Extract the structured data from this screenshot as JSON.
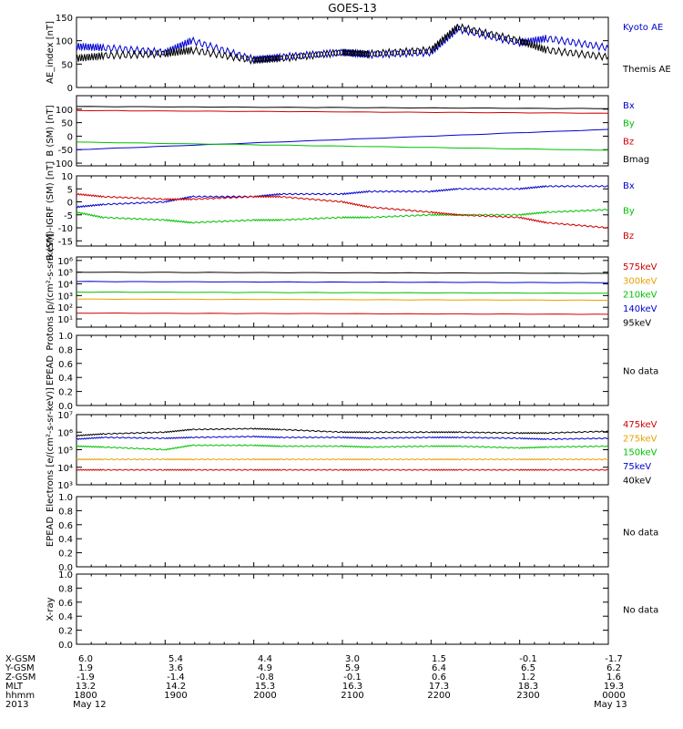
{
  "title": "GOES-13",
  "no_data_label": "No data",
  "colors": {
    "black": "#000000",
    "blue": "#0000d0",
    "red": "#d00000",
    "green": "#00c000",
    "orange": "#e8a000"
  },
  "footer": {
    "rows": [
      {
        "label": "X-GSM",
        "values": [
          "6.0",
          "5.4",
          "4.4",
          "3.0",
          "1.5",
          "-0.1",
          "-1.7"
        ]
      },
      {
        "label": "Y-GSM",
        "values": [
          "1.9",
          "3.6",
          "4.9",
          "5.9",
          "6.4",
          "6.5",
          "6.2"
        ]
      },
      {
        "label": "Z-GSM",
        "values": [
          "-1.9",
          "-1.4",
          "-0.8",
          "-0.1",
          "0.6",
          "1.2",
          "1.6"
        ]
      },
      {
        "label": "MLT",
        "values": [
          "13.2",
          "14.2",
          "15.3",
          "16.3",
          "17.3",
          "18.3",
          "19.3"
        ]
      },
      {
        "label": "hhmm",
        "values": [
          "1800",
          "1900",
          "2000",
          "2100",
          "2200",
          "2300",
          "0000"
        ]
      }
    ],
    "year": "2013",
    "date_start": "May 12",
    "date_end": "May 13"
  },
  "chart_data": [
    {
      "id": "ae",
      "type": "line",
      "ylabel": "AE_index [nT]",
      "ylim": [
        0,
        150
      ],
      "scale": "linear",
      "ticks": [
        "0",
        "50",
        "100",
        "150"
      ],
      "x": [
        1800,
        1830,
        1900,
        1930,
        2000,
        2030,
        2100,
        2130,
        2200,
        2230,
        2300,
        2330,
        2400
      ],
      "series": [
        {
          "name": "Kyoto AE",
          "color": "blue",
          "values": [
            88,
            85,
            75,
            100,
            60,
            65,
            75,
            70,
            75,
            125,
            95,
            105,
            85
          ]
        },
        {
          "name": "Themis AE",
          "color": "black",
          "values": [
            62,
            68,
            72,
            80,
            58,
            62,
            75,
            72,
            80,
            130,
            100,
            80,
            65
          ]
        }
      ]
    },
    {
      "id": "b",
      "type": "line",
      "ylabel": "B (SM) [nT]",
      "ylim": [
        -110,
        150
      ],
      "scale": "linear",
      "ticks": [
        "-100",
        "-50",
        "0",
        "50",
        "100"
      ],
      "x": [
        1800,
        2400
      ],
      "series": [
        {
          "name": "Bx",
          "color": "blue",
          "values": [
            -50,
            25
          ]
        },
        {
          "name": "By",
          "color": "green",
          "values": [
            -22,
            -52
          ]
        },
        {
          "name": "Bz",
          "color": "red",
          "values": [
            95,
            85
          ]
        },
        {
          "name": "Bmag",
          "color": "black",
          "values": [
            110,
            102
          ]
        }
      ]
    },
    {
      "id": "bigrf",
      "type": "line",
      "ylabel": "B (SM)-IGRF (SM) [nT]",
      "ylim": [
        -17,
        10
      ],
      "scale": "linear",
      "ticks": [
        "-15",
        "-10",
        "-5",
        "0",
        "5",
        "10"
      ],
      "x": [
        1800,
        1830,
        1900,
        1930,
        2000,
        2030,
        2100,
        2130,
        2200,
        2230,
        2300,
        2330,
        2400
      ],
      "series": [
        {
          "name": "Bx",
          "color": "blue",
          "values": [
            -2,
            -1,
            0,
            2,
            2,
            3,
            3,
            4,
            4,
            5,
            5,
            6,
            6
          ]
        },
        {
          "name": "By",
          "color": "green",
          "values": [
            -4,
            -6,
            -7,
            -8,
            -7,
            -7,
            -6,
            -6,
            -5,
            -5,
            -5,
            -4,
            -3
          ]
        },
        {
          "name": "Bz",
          "color": "red",
          "values": [
            3,
            2,
            1,
            1,
            2,
            2,
            0,
            -2,
            -4,
            -5,
            -6,
            -8,
            -10
          ]
        }
      ]
    },
    {
      "id": "protons",
      "type": "line",
      "ylabel": "Protons [p/(cm²-s-sr-keV)]",
      "ylim": [
        0.3,
        6.3
      ],
      "scale": "log",
      "ticks": [
        "10¹",
        "10²",
        "10³",
        "10⁴",
        "10⁵",
        "10⁶"
      ],
      "x": [
        1800,
        2400
      ],
      "series": [
        {
          "name": "575keV",
          "color": "red",
          "values": [
            1.5,
            1.4
          ]
        },
        {
          "name": "300keV",
          "color": "orange",
          "values": [
            2.7,
            2.6
          ]
        },
        {
          "name": "210keV",
          "color": "green",
          "values": [
            3.3,
            3.2
          ]
        },
        {
          "name": "140keV",
          "color": "blue",
          "values": [
            4.2,
            4.1
          ]
        },
        {
          "name": "95keV",
          "color": "black",
          "values": [
            5.0,
            4.9
          ]
        }
      ]
    },
    {
      "id": "epead1",
      "type": "empty",
      "ylabel": "EPEAD",
      "ylim": [
        0,
        1
      ],
      "scale": "linear",
      "ticks": [
        "0.0",
        "0.2",
        "0.4",
        "0.6",
        "0.8",
        "1.0"
      ],
      "series": []
    },
    {
      "id": "electrons",
      "type": "line",
      "ylabel": "Electrons [e/(cm²-s-sr-keV)]",
      "ylim": [
        3,
        7
      ],
      "scale": "log",
      "ticks": [
        "10³",
        "10⁴",
        "10⁵",
        "10⁶",
        "10⁷"
      ],
      "x": [
        1800,
        1830,
        1900,
        1930,
        2000,
        2030,
        2100,
        2130,
        2200,
        2230,
        2300,
        2330,
        2400
      ],
      "series": [
        {
          "name": "475keV",
          "color": "red",
          "values": [
            3.85,
            3.85,
            3.85,
            3.85,
            3.85,
            3.85,
            3.85,
            3.85,
            3.85,
            3.85,
            3.85,
            3.85,
            3.85
          ]
        },
        {
          "name": "275keV",
          "color": "orange",
          "values": [
            4.45,
            4.45,
            4.45,
            4.45,
            4.45,
            4.45,
            4.45,
            4.45,
            4.45,
            4.45,
            4.45,
            4.45,
            4.45
          ]
        },
        {
          "name": "150keV",
          "color": "green",
          "values": [
            5.2,
            5.15,
            5.0,
            5.25,
            5.25,
            5.2,
            5.2,
            5.15,
            5.2,
            5.2,
            5.1,
            5.15,
            5.2
          ]
        },
        {
          "name": "75keV",
          "color": "blue",
          "values": [
            5.6,
            5.7,
            5.65,
            5.7,
            5.75,
            5.7,
            5.7,
            5.65,
            5.7,
            5.7,
            5.65,
            5.6,
            5.65
          ]
        },
        {
          "name": "40keV",
          "color": "black",
          "values": [
            5.8,
            5.9,
            6.0,
            6.15,
            6.2,
            6.15,
            6.0,
            6.0,
            6.0,
            6.0,
            5.95,
            5.95,
            6.05
          ]
        }
      ]
    },
    {
      "id": "epead2",
      "type": "empty",
      "ylabel": "EPEAD",
      "ylim": [
        0,
        1
      ],
      "scale": "linear",
      "ticks": [
        "0.0",
        "0.2",
        "0.4",
        "0.6",
        "0.8",
        "1.0"
      ],
      "series": []
    },
    {
      "id": "xray",
      "type": "empty",
      "ylabel": "X-ray",
      "ylim": [
        0,
        1
      ],
      "scale": "linear",
      "ticks": [
        "0.0",
        "0.2",
        "0.4",
        "0.6",
        "0.8",
        "1.0"
      ],
      "series": []
    }
  ]
}
